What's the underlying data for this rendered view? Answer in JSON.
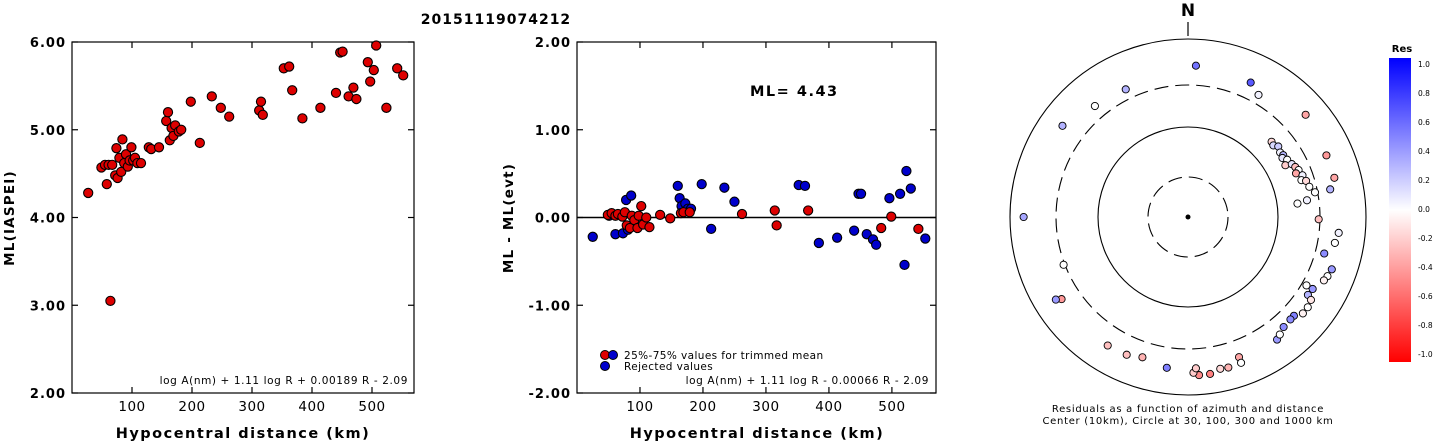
{
  "event_title": "20151119074212",
  "chart_data": [
    {
      "type": "scatter",
      "id": "ml_vs_distance",
      "xlabel": "Hypocentral distance (km)",
      "ylabel": "ML(IASPEI)",
      "xlim": [
        0,
        570
      ],
      "ylim": [
        2.0,
        6.0
      ],
      "x_ticks": [
        100,
        200,
        300,
        400,
        500
      ],
      "y_ticks": [
        2.0,
        3.0,
        4.0,
        5.0,
        6.0
      ],
      "y_tick_labels": [
        "2.00",
        "3.00",
        "4.00",
        "5.00",
        "6.00"
      ],
      "formula": "log A(nm) + 1.11 log R + 0.00189 R - 2.09",
      "point_color": "#dd0000",
      "points": [
        [
          27,
          4.28
        ],
        [
          49,
          4.57
        ],
        [
          55,
          4.6
        ],
        [
          58,
          4.38
        ],
        [
          61,
          4.6
        ],
        [
          64,
          3.05
        ],
        [
          67,
          4.6
        ],
        [
          72,
          4.48
        ],
        [
          74,
          4.79
        ],
        [
          76,
          4.45
        ],
        [
          79,
          4.68
        ],
        [
          82,
          4.52
        ],
        [
          84,
          4.89
        ],
        [
          87,
          4.62
        ],
        [
          90,
          4.72
        ],
        [
          93,
          4.58
        ],
        [
          96,
          4.65
        ],
        [
          99,
          4.8
        ],
        [
          102,
          4.65
        ],
        [
          105,
          4.68
        ],
        [
          109,
          4.62
        ],
        [
          115,
          4.62
        ],
        [
          128,
          4.8
        ],
        [
          132,
          4.78
        ],
        [
          145,
          4.8
        ],
        [
          157,
          5.1
        ],
        [
          160,
          5.2
        ],
        [
          163,
          4.88
        ],
        [
          166,
          5.02
        ],
        [
          169,
          4.93
        ],
        [
          172,
          5.05
        ],
        [
          178,
          4.98
        ],
        [
          182,
          5.0
        ],
        [
          198,
          5.32
        ],
        [
          213,
          4.85
        ],
        [
          233,
          5.38
        ],
        [
          248,
          5.25
        ],
        [
          262,
          5.15
        ],
        [
          312,
          5.22
        ],
        [
          315,
          5.32
        ],
        [
          318,
          5.17
        ],
        [
          353,
          5.7
        ],
        [
          362,
          5.72
        ],
        [
          367,
          5.45
        ],
        [
          384,
          5.13
        ],
        [
          414,
          5.25
        ],
        [
          440,
          5.42
        ],
        [
          447,
          5.88
        ],
        [
          451,
          5.89
        ],
        [
          461,
          5.38
        ],
        [
          469,
          5.48
        ],
        [
          474,
          5.35
        ],
        [
          493,
          5.77
        ],
        [
          497,
          5.55
        ],
        [
          503,
          5.68
        ],
        [
          507,
          5.96
        ],
        [
          524,
          5.25
        ],
        [
          542,
          5.7
        ],
        [
          552,
          5.62
        ]
      ]
    },
    {
      "type": "scatter",
      "id": "residual_vs_distance",
      "xlabel": "Hypocentral distance (km)",
      "ylabel": "ML - ML(evt)",
      "xlim": [
        0,
        570
      ],
      "ylim": [
        -2.0,
        2.0
      ],
      "x_ticks": [
        100,
        200,
        300,
        400,
        500
      ],
      "y_ticks": [
        -2.0,
        -1.0,
        0.0,
        1.0,
        2.0
      ],
      "y_tick_labels": [
        "-2.00",
        "-1.00",
        "0.00",
        "1.00",
        "2.00"
      ],
      "annotation": "ML= 4.43",
      "formula": "log A(nm) + 1.11 log R - 0.00066 R - 2.09",
      "legend": [
        {
          "label": "25%-75% values for trimmed mean",
          "colors": [
            "#dd0000",
            "#0000cc"
          ]
        },
        {
          "label": "Rejected values",
          "colors": [
            "#0000cc"
          ]
        }
      ],
      "series": [
        {
          "color": "#dd0000",
          "points": [
            [
              49,
              0.03
            ],
            [
              55,
              0.05
            ],
            [
              61,
              0.02
            ],
            [
              65,
              0.04
            ],
            [
              72,
              0.01
            ],
            [
              76,
              0.06
            ],
            [
              79,
              -0.09
            ],
            [
              84,
              -0.12
            ],
            [
              87,
              0.02
            ],
            [
              91,
              -0.03
            ],
            [
              96,
              -0.12
            ],
            [
              98,
              0.02
            ],
            [
              102,
              0.13
            ],
            [
              105,
              -0.08
            ],
            [
              110,
              0.0
            ],
            [
              115,
              -0.11
            ],
            [
              132,
              0.03
            ],
            [
              148,
              -0.01
            ],
            [
              165,
              0.05
            ],
            [
              169,
              0.06
            ],
            [
              179,
              0.06
            ],
            [
              262,
              0.04
            ],
            [
              314,
              0.08
            ],
            [
              317,
              -0.09
            ],
            [
              367,
              0.08
            ],
            [
              483,
              -0.12
            ],
            [
              499,
              0.01
            ],
            [
              542,
              -0.13
            ]
          ]
        },
        {
          "color": "#0000cc",
          "points": [
            [
              25,
              -0.22
            ],
            [
              51,
              0.02
            ],
            [
              61,
              -0.19
            ],
            [
              73,
              -0.18
            ],
            [
              78,
              0.2
            ],
            [
              81,
              -0.14
            ],
            [
              86,
              0.25
            ],
            [
              160,
              0.36
            ],
            [
              163,
              0.22
            ],
            [
              166,
              0.13
            ],
            [
              172,
              0.16
            ],
            [
              176,
              0.1
            ],
            [
              181,
              0.1
            ],
            [
              198,
              0.38
            ],
            [
              213,
              -0.13
            ],
            [
              234,
              0.34
            ],
            [
              250,
              0.18
            ],
            [
              352,
              0.37
            ],
            [
              362,
              0.36
            ],
            [
              384,
              -0.29
            ],
            [
              413,
              -0.23
            ],
            [
              440,
              -0.15
            ],
            [
              447,
              0.27
            ],
            [
              451,
              0.27
            ],
            [
              460,
              -0.19
            ],
            [
              470,
              -0.25
            ],
            [
              475,
              -0.31
            ],
            [
              496,
              0.22
            ],
            [
              513,
              0.27
            ],
            [
              520,
              -0.54
            ],
            [
              523,
              0.53
            ],
            [
              530,
              0.33
            ],
            [
              553,
              -0.24
            ]
          ]
        }
      ]
    },
    {
      "type": "polar-scatter",
      "id": "azimuth_residuals",
      "north_label": "N",
      "caption_line1": "Residuals as a function of azimuth and distance",
      "caption_line2": "Center (10km), Circle at 30, 100, 300 and 1000 km",
      "rings_km": [
        30,
        100,
        300,
        1000
      ],
      "ring_styles": [
        "dashed",
        "solid",
        "dashed",
        "solid"
      ],
      "colorbar": {
        "title": "Res",
        "tick_labels": [
          "1.0",
          "0.8",
          "0.6",
          "0.4",
          "0.2",
          "0.0",
          "-0.2",
          "-0.4",
          "-0.6",
          "-0.8",
          "-1.0"
        ],
        "max_color": "#0000ff",
        "mid_color": "#ffffff",
        "min_color": "#ff0000"
      },
      "points": [
        {
          "az": 3,
          "dist": 500,
          "res": 0.55
        },
        {
          "az": 25,
          "dist": 460,
          "res": 0.65
        },
        {
          "az": 334,
          "dist": 390,
          "res": 0.3
        },
        {
          "az": 320,
          "dist": 420,
          "res": 0.0
        },
        {
          "az": 30,
          "dist": 380,
          "res": 0.05
        },
        {
          "az": 306,
          "dist": 550,
          "res": 0.3
        },
        {
          "az": 49,
          "dist": 560,
          "res": -0.35
        },
        {
          "az": 270,
          "dist": 700,
          "res": 0.35
        },
        {
          "az": 48,
          "dist": 180,
          "res": -0.15
        },
        {
          "az": 50,
          "dist": 175,
          "res": 0.15
        },
        {
          "az": 52,
          "dist": 190,
          "res": 0.2
        },
        {
          "az": 55,
          "dist": 180,
          "res": 0.05
        },
        {
          "az": 57,
          "dist": 185,
          "res": 0.3
        },
        {
          "az": 58,
          "dist": 175,
          "res": 0.1
        },
        {
          "az": 60,
          "dist": 190,
          "res": 0.0
        },
        {
          "az": 62,
          "dist": 170,
          "res": -0.2
        },
        {
          "az": 63,
          "dist": 200,
          "res": 0.1
        },
        {
          "az": 65,
          "dist": 210,
          "res": -0.25
        },
        {
          "az": 67,
          "dist": 220,
          "res": 0.0
        },
        {
          "az": 68,
          "dist": 200,
          "res": -0.35
        },
        {
          "az": 70,
          "dist": 230,
          "res": 0.05
        },
        {
          "az": 72,
          "dist": 215,
          "res": 0.0
        },
        {
          "az": 73,
          "dist": 240,
          "res": -0.15
        },
        {
          "az": 76,
          "dist": 250,
          "res": 0.0
        },
        {
          "az": 79,
          "dist": 280,
          "res": 0.0
        },
        {
          "az": 82,
          "dist": 220,
          "res": 0.05
        },
        {
          "az": 66,
          "dist": 500,
          "res": -0.4
        },
        {
          "az": 75,
          "dist": 500,
          "res": -0.35
        },
        {
          "az": 79,
          "dist": 420,
          "res": 0.3
        },
        {
          "az": 91,
          "dist": 290,
          "res": -0.25
        },
        {
          "az": 96,
          "dist": 500,
          "res": 0.05
        },
        {
          "az": 100,
          "dist": 470,
          "res": 0.0
        },
        {
          "az": 105,
          "dist": 380,
          "res": 0.45
        },
        {
          "az": 110,
          "dist": 520,
          "res": 0.4
        },
        {
          "az": 113,
          "dist": 500,
          "res": 0.0
        },
        {
          "az": 115,
          "dist": 480,
          "res": -0.05
        },
        {
          "az": 120,
          "dist": 340,
          "res": 0.0
        },
        {
          "az": 120,
          "dist": 410,
          "res": 0.4
        },
        {
          "az": 123,
          "dist": 400,
          "res": 0.3
        },
        {
          "az": 124,
          "dist": 460,
          "res": -0.1
        },
        {
          "az": 127,
          "dist": 480,
          "res": 0.0
        },
        {
          "az": 130,
          "dist": 480,
          "res": -0.05
        },
        {
          "az": 133,
          "dist": 420,
          "res": 0.5
        },
        {
          "az": 135,
          "dist": 420,
          "res": 0.45
        },
        {
          "az": 139,
          "dist": 430,
          "res": 0.45
        },
        {
          "az": 144,
          "dist": 500,
          "res": 0.4
        },
        {
          "az": 142,
          "dist": 470,
          "res": 0.0
        },
        {
          "az": 160,
          "dist": 470,
          "res": -0.35
        },
        {
          "az": 165,
          "dist": 560,
          "res": -0.3
        },
        {
          "az": 168,
          "dist": 550,
          "res": -0.15
        },
        {
          "az": 172,
          "dist": 600,
          "res": -0.5
        },
        {
          "az": 176,
          "dist": 600,
          "res": -0.45
        },
        {
          "az": 178,
          "dist": 560,
          "res": -0.2
        },
        {
          "az": 160,
          "dist": 550,
          "res": 0.0
        },
        {
          "az": 177,
          "dist": 500,
          "res": -0.2
        },
        {
          "az": 188,
          "dist": 510,
          "res": 0.5
        },
        {
          "az": 198,
          "dist": 450,
          "res": -0.3
        },
        {
          "az": 204,
          "dist": 490,
          "res": -0.25
        },
        {
          "az": 212,
          "dist": 500,
          "res": -0.25
        },
        {
          "az": 237,
          "dist": 490,
          "res": -0.4
        },
        {
          "az": 238,
          "dist": 560,
          "res": 0.4
        },
        {
          "az": 249,
          "dist": 310,
          "res": 0.0
        },
        {
          "az": 83,
          "dist": 170,
          "res": 0.0
        }
      ]
    }
  ]
}
